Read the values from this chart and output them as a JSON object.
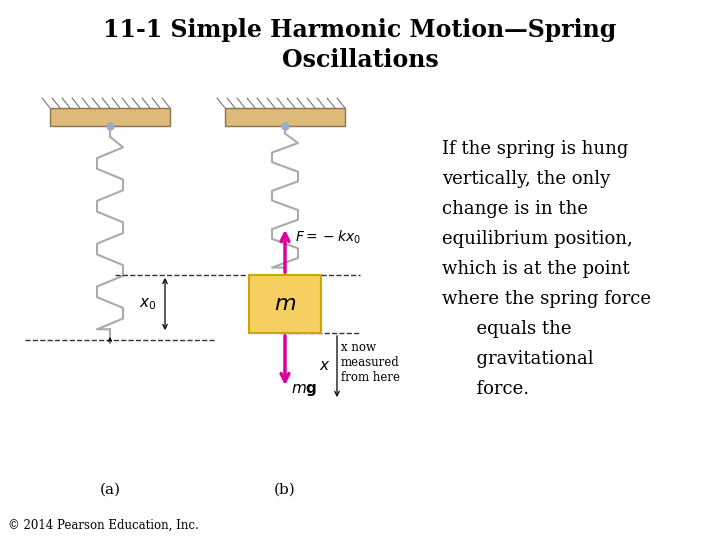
{
  "title_line1": "11-1 Simple Harmonic Motion—Spring",
  "title_line2": "Oscillations",
  "title_fontsize": 17,
  "bg_color": "#ffffff",
  "ceiling_color": "#ddb97a",
  "ceiling_edge_color": "#8b7355",
  "spring_color": "#aaaaaa",
  "mass_color": "#f5d060",
  "mass_edge_color": "#c8a800",
  "mass_text_color": "#000000",
  "arrow_magenta": "#dd0099",
  "dashed_color": "#333333",
  "pin_color": "#99aacc",
  "text_color": "#000000",
  "copyright_text": "© 2014 Pearson Education, Inc.",
  "label_a": "(a)",
  "label_b": "(b)",
  "body_text_lines": [
    "If the spring is hung",
    "vertically, the only",
    "change is in the",
    "equilibrium position,",
    "which is at the point",
    "where the spring force",
    "      equals the",
    "      gravitational",
    "      force."
  ]
}
